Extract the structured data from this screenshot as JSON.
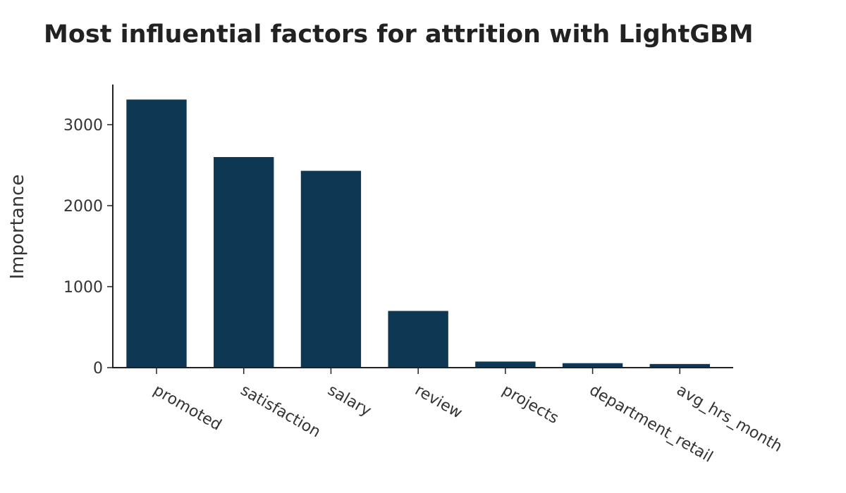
{
  "chart_data": {
    "type": "bar",
    "title": "Most influential factors for attrition with LightGBM",
    "xlabel": "",
    "ylabel": "Importance",
    "categories": [
      "promoted",
      "satisfaction",
      "salary",
      "review",
      "projects",
      "department_retail",
      "avg_hrs_month"
    ],
    "values": [
      3310,
      2600,
      2430,
      700,
      75,
      55,
      45
    ],
    "ylim": [
      0,
      3500
    ],
    "yticks": [
      0,
      1000,
      2000,
      3000
    ],
    "bar_color": "#0d3752",
    "grid": false,
    "legend": "none"
  }
}
